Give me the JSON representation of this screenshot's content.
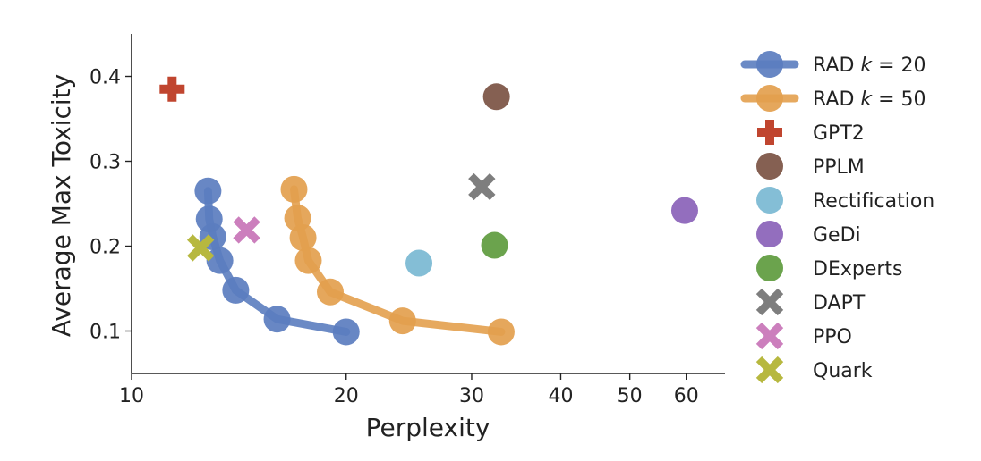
{
  "chart_data": {
    "type": "scatter",
    "xlabel": "Perplexity",
    "ylabel": "Average Max Toxicity",
    "xscale": "log",
    "xlim": [
      10,
      68
    ],
    "ylim": [
      0.05,
      0.45
    ],
    "xticks": [
      10,
      20,
      30,
      40,
      50,
      60
    ],
    "yticks": [
      0.1,
      0.2,
      0.3,
      0.4
    ],
    "legend_position": "right",
    "grid": false,
    "series": [
      {
        "name": "RAD k = 20",
        "name_prefix": "RAD ",
        "name_k": "k",
        "name_suffix": " = 20",
        "kind": "line",
        "marker": "circle",
        "color": "#5b7dbf",
        "points": [
          [
            12.8,
            0.265
          ],
          [
            12.85,
            0.232
          ],
          [
            13.0,
            0.211
          ],
          [
            13.3,
            0.183
          ],
          [
            14.0,
            0.148
          ],
          [
            16.0,
            0.114
          ],
          [
            20.0,
            0.099
          ]
        ]
      },
      {
        "name": "RAD k = 50",
        "name_prefix": "RAD ",
        "name_k": "k",
        "name_suffix": " = 50",
        "kind": "line",
        "marker": "circle",
        "color": "#e3a04e",
        "points": [
          [
            16.9,
            0.267
          ],
          [
            17.1,
            0.233
          ],
          [
            17.4,
            0.21
          ],
          [
            17.7,
            0.183
          ],
          [
            19.0,
            0.146
          ],
          [
            24.0,
            0.112
          ],
          [
            33.0,
            0.099
          ]
        ]
      },
      {
        "name": "GPT2",
        "kind": "point",
        "marker": "plus",
        "color": "#c0452f",
        "points": [
          [
            11.4,
            0.385
          ]
        ]
      },
      {
        "name": "PPLM",
        "kind": "point",
        "marker": "circle",
        "color": "#7b5343",
        "points": [
          [
            32.5,
            0.376
          ]
        ]
      },
      {
        "name": "Rectification",
        "kind": "point",
        "marker": "circle",
        "color": "#7ab8d2",
        "points": [
          [
            25.3,
            0.18
          ]
        ]
      },
      {
        "name": "GeDi",
        "kind": "point",
        "marker": "circle",
        "color": "#8a62b8",
        "points": [
          [
            59.7,
            0.242
          ]
        ]
      },
      {
        "name": "DExperts",
        "kind": "point",
        "marker": "circle",
        "color": "#5e9b3e",
        "points": [
          [
            32.3,
            0.201
          ]
        ]
      },
      {
        "name": "DAPT",
        "kind": "point",
        "marker": "x",
        "color": "#7e7e7e",
        "points": [
          [
            31.0,
            0.27
          ]
        ]
      },
      {
        "name": "PPO",
        "kind": "point",
        "marker": "x",
        "color": "#cc7fbd",
        "points": [
          [
            14.5,
            0.219
          ]
        ]
      },
      {
        "name": "Quark",
        "kind": "point",
        "marker": "x",
        "color": "#b7b83f",
        "points": [
          [
            12.5,
            0.198
          ]
        ]
      }
    ]
  }
}
